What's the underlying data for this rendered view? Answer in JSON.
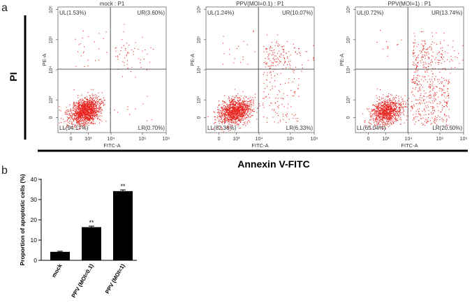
{
  "figure": {
    "panel_a_letter": "a",
    "panel_b_letter": "b",
    "pi_label": "PI",
    "annexin_label": "Annexin V-FITC"
  },
  "colors": {
    "dots": "#e8231f",
    "bar": "#000000",
    "axis": "#333333"
  },
  "chart_data": [
    {
      "type": "scatter",
      "title": "mock : P1",
      "xlabel": "FITC-A",
      "ylabel": "PE-A",
      "log_scale": true,
      "x_ticks": [
        "0",
        "10³",
        "10⁴",
        "10⁶",
        "10⁶"
      ],
      "y_ticks": [
        "0",
        "10³",
        "10⁴",
        "10⁵",
        "10⁶"
      ],
      "quadrants": {
        "UL": "UL(1.53%)",
        "UR": "UR(3.60%)",
        "LL": "LL(94.17%)",
        "LR": "LR(0.70%)"
      },
      "proportions": {
        "UL": 1.53,
        "UR": 3.6,
        "LL": 94.17,
        "LR": 0.7
      }
    },
    {
      "type": "scatter",
      "title": "PPV(MOI=0.1) : P1",
      "xlabel": "FITC-A",
      "ylabel": "PE-A",
      "log_scale": true,
      "x_ticks": [
        "0",
        "10³",
        "10⁴",
        "10⁶",
        "10⁶"
      ],
      "y_ticks": [
        "0",
        "10³",
        "10⁴",
        "10⁵",
        "10⁶"
      ],
      "quadrants": {
        "UL": "UL(1.24%)",
        "UR": "UR(10.07%)",
        "LL": "LL(82.36%)",
        "LR": "LR(6.33%)"
      },
      "proportions": {
        "UL": 1.24,
        "UR": 10.07,
        "LL": 82.36,
        "LR": 6.33
      }
    },
    {
      "type": "scatter",
      "title": "PPV(MOI=1) : P1",
      "xlabel": "FITC-A",
      "ylabel": "PE-A",
      "log_scale": true,
      "x_ticks": [
        "0",
        "10³",
        "10⁴",
        "10⁶",
        "10⁶"
      ],
      "y_ticks": [
        "0",
        "10³",
        "10⁴",
        "10⁵",
        "10⁶"
      ],
      "quadrants": {
        "UL": "UL(0.72%)",
        "UR": "UR(13.74%)",
        "LL": "LL(65.04%)",
        "LR": "LR(20.50%)"
      },
      "proportions": {
        "UL": 0.72,
        "UR": 13.74,
        "LL": 65.04,
        "LR": 20.5
      }
    },
    {
      "type": "bar",
      "ylabel": "Proportion of apoptotic cells (%)",
      "categories": [
        "mock",
        "PPV (MOI=0.1)",
        "PPV (MOI=1)"
      ],
      "values": [
        4.2,
        16.4,
        34.2
      ],
      "errors": [
        0.3,
        0.5,
        0.6
      ],
      "annotations": [
        "",
        "**",
        "**"
      ],
      "ylim": [
        0,
        40
      ],
      "yticks": [
        0,
        10,
        20,
        30,
        40
      ]
    }
  ]
}
